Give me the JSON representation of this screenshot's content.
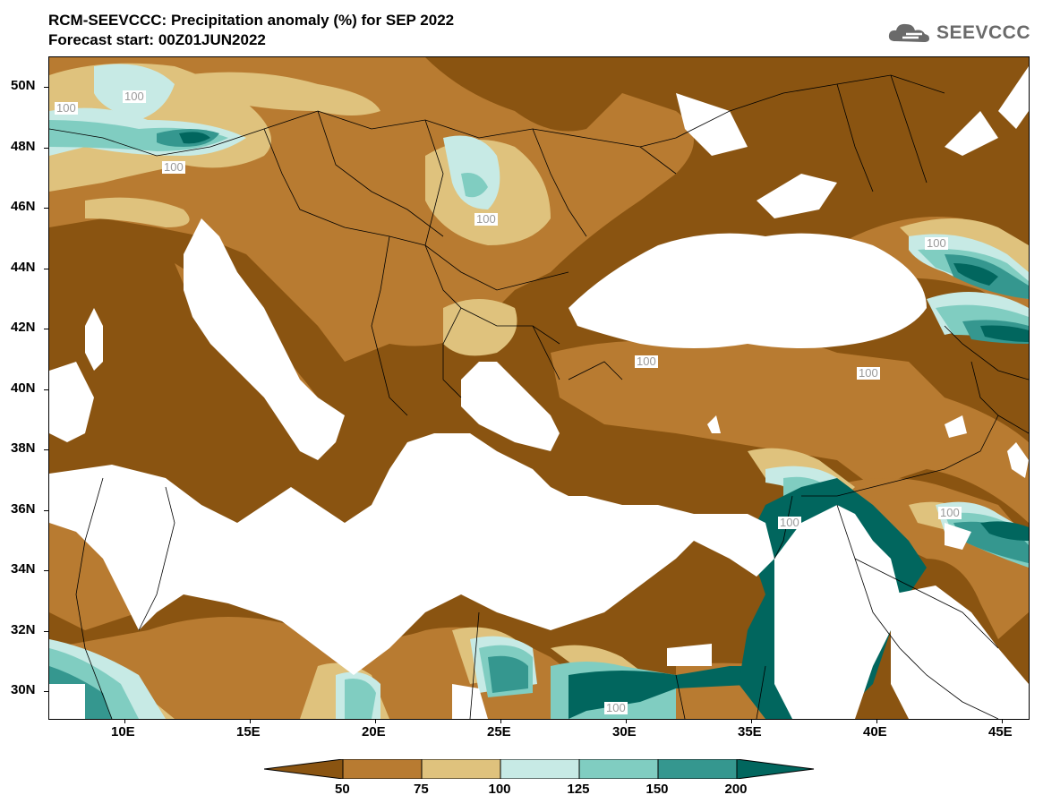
{
  "header": {
    "title": "RCM-SEEVCCC: Precipitation anomaly (%) for SEP 2022",
    "subtitle": "Forecast start: 00Z01JUN2022",
    "logo_text": "SEEVCCC"
  },
  "map": {
    "lat_labels": [
      "50N",
      "48N",
      "46N",
      "44N",
      "42N",
      "40N",
      "38N",
      "36N",
      "34N",
      "32N",
      "30N"
    ],
    "lon_labels": [
      "10E",
      "15E",
      "20E",
      "25E",
      "30E",
      "35E",
      "40E",
      "45E"
    ],
    "contour_labels": [
      "100",
      "100",
      "100",
      "100",
      "100",
      "100",
      "100",
      "100",
      "100",
      "100"
    ]
  },
  "legend": {
    "thresholds": [
      "50",
      "75",
      "100",
      "125",
      "150",
      "200"
    ],
    "colors": [
      "#8a5411",
      "#b87b31",
      "#dfc27d",
      "#c7eae5",
      "#80cdc1",
      "#35978f",
      "#01665e"
    ]
  }
}
